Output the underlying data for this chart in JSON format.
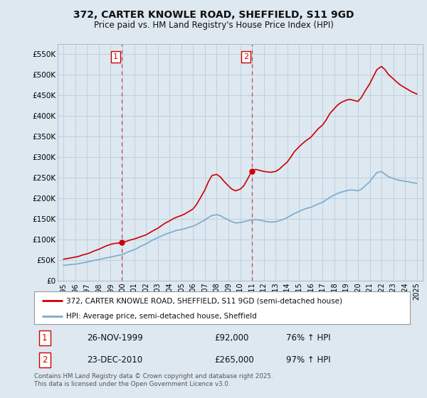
{
  "title_line1": "372, CARTER KNOWLE ROAD, SHEFFIELD, S11 9GD",
  "title_line2": "Price paid vs. HM Land Registry's House Price Index (HPI)",
  "sale1_label": "1",
  "sale1_date": "26-NOV-1999",
  "sale1_price": 92000,
  "sale1_hpi": "76% ↑ HPI",
  "sale1_year": 1999.92,
  "sale2_label": "2",
  "sale2_date": "23-DEC-2010",
  "sale2_price": 265000,
  "sale2_hpi": "97% ↑ HPI",
  "sale2_year": 2010.97,
  "legend_line1": "372, CARTER KNOWLE ROAD, SHEFFIELD, S11 9GD (semi-detached house)",
  "legend_line2": "HPI: Average price, semi-detached house, Sheffield",
  "footer": "Contains HM Land Registry data © Crown copyright and database right 2025.\nThis data is licensed under the Open Government Licence v3.0.",
  "line_color_red": "#cc0000",
  "line_color_blue": "#7aabcf",
  "vline_color": "#cc0000",
  "bg_color": "#dde8f0",
  "plot_bg": "#dde8f0",
  "grid_color": "#bbccdd",
  "ylim": [
    0,
    575000
  ],
  "xlim_start": 1994.5,
  "xlim_end": 2025.5,
  "yticks": [
    0,
    50000,
    100000,
    150000,
    200000,
    250000,
    300000,
    350000,
    400000,
    450000,
    500000,
    550000
  ],
  "ytick_labels": [
    "£0",
    "£50K",
    "£100K",
    "£150K",
    "£200K",
    "£250K",
    "£300K",
    "£350K",
    "£400K",
    "£450K",
    "£500K",
    "£550K"
  ],
  "xticks": [
    1995,
    1996,
    1997,
    1998,
    1999,
    2000,
    2001,
    2002,
    2003,
    2004,
    2005,
    2006,
    2007,
    2008,
    2009,
    2010,
    2011,
    2012,
    2013,
    2014,
    2015,
    2016,
    2017,
    2018,
    2019,
    2020,
    2021,
    2022,
    2023,
    2024,
    2025
  ],
  "red_x": [
    1995.0,
    1995.3,
    1995.6,
    1996.0,
    1996.3,
    1996.6,
    1997.0,
    1997.3,
    1997.6,
    1998.0,
    1998.3,
    1998.6,
    1999.0,
    1999.3,
    1999.6,
    1999.92,
    2000.3,
    2000.6,
    2001.0,
    2001.3,
    2001.6,
    2002.0,
    2002.3,
    2002.6,
    2003.0,
    2003.3,
    2003.6,
    2004.0,
    2004.3,
    2004.6,
    2005.0,
    2005.3,
    2005.6,
    2006.0,
    2006.3,
    2006.6,
    2007.0,
    2007.3,
    2007.6,
    2008.0,
    2008.3,
    2008.6,
    2009.0,
    2009.3,
    2009.6,
    2010.0,
    2010.3,
    2010.6,
    2010.97,
    2011.3,
    2011.6,
    2012.0,
    2012.3,
    2012.6,
    2013.0,
    2013.3,
    2013.6,
    2014.0,
    2014.3,
    2014.6,
    2015.0,
    2015.3,
    2015.6,
    2016.0,
    2016.3,
    2016.6,
    2017.0,
    2017.3,
    2017.6,
    2018.0,
    2018.3,
    2018.6,
    2019.0,
    2019.3,
    2019.6,
    2020.0,
    2020.3,
    2020.6,
    2021.0,
    2021.3,
    2021.6,
    2022.0,
    2022.3,
    2022.6,
    2023.0,
    2023.3,
    2023.6,
    2024.0,
    2024.3,
    2024.6,
    2025.0
  ],
  "red_y": [
    52000,
    53500,
    55000,
    57000,
    59000,
    62000,
    65000,
    68000,
    72000,
    76000,
    80000,
    84000,
    88000,
    90000,
    91000,
    92000,
    95000,
    98000,
    101000,
    104000,
    107000,
    111000,
    116000,
    121000,
    127000,
    133000,
    139000,
    145000,
    150000,
    154000,
    158000,
    162000,
    167000,
    174000,
    185000,
    200000,
    220000,
    240000,
    255000,
    258000,
    252000,
    242000,
    230000,
    222000,
    218000,
    222000,
    230000,
    245000,
    265000,
    270000,
    268000,
    265000,
    264000,
    263000,
    265000,
    270000,
    278000,
    288000,
    300000,
    313000,
    325000,
    333000,
    340000,
    348000,
    358000,
    368000,
    378000,
    390000,
    405000,
    418000,
    427000,
    433000,
    438000,
    440000,
    438000,
    435000,
    445000,
    460000,
    478000,
    495000,
    512000,
    520000,
    512000,
    500000,
    490000,
    482000,
    475000,
    468000,
    463000,
    458000,
    453000
  ],
  "blue_x": [
    1995.0,
    1995.3,
    1995.6,
    1996.0,
    1996.3,
    1996.6,
    1997.0,
    1997.3,
    1997.6,
    1998.0,
    1998.3,
    1998.6,
    1999.0,
    1999.3,
    1999.6,
    2000.0,
    2000.3,
    2000.6,
    2001.0,
    2001.3,
    2001.6,
    2002.0,
    2002.3,
    2002.6,
    2003.0,
    2003.3,
    2003.6,
    2004.0,
    2004.3,
    2004.6,
    2005.0,
    2005.3,
    2005.6,
    2006.0,
    2006.3,
    2006.6,
    2007.0,
    2007.3,
    2007.6,
    2008.0,
    2008.3,
    2008.6,
    2009.0,
    2009.3,
    2009.6,
    2010.0,
    2010.3,
    2010.6,
    2011.0,
    2011.3,
    2011.6,
    2012.0,
    2012.3,
    2012.6,
    2013.0,
    2013.3,
    2013.6,
    2014.0,
    2014.3,
    2014.6,
    2015.0,
    2015.3,
    2015.6,
    2016.0,
    2016.3,
    2016.6,
    2017.0,
    2017.3,
    2017.6,
    2018.0,
    2018.3,
    2018.6,
    2019.0,
    2019.3,
    2019.6,
    2020.0,
    2020.3,
    2020.6,
    2021.0,
    2021.3,
    2021.6,
    2022.0,
    2022.3,
    2022.6,
    2023.0,
    2023.3,
    2023.6,
    2024.0,
    2024.3,
    2024.6,
    2025.0
  ],
  "blue_y": [
    37000,
    38000,
    39000,
    40000,
    41000,
    43000,
    45000,
    47000,
    49000,
    51000,
    53000,
    55000,
    57000,
    59000,
    61000,
    63000,
    67000,
    71000,
    75000,
    79000,
    84000,
    89000,
    94000,
    99000,
    104000,
    108000,
    112000,
    116000,
    119000,
    122000,
    124000,
    126000,
    129000,
    132000,
    136000,
    141000,
    147000,
    153000,
    158000,
    160000,
    158000,
    153000,
    147000,
    143000,
    140000,
    141000,
    143000,
    145000,
    147000,
    148000,
    147000,
    145000,
    143000,
    142000,
    143000,
    145000,
    148000,
    153000,
    158000,
    163000,
    168000,
    172000,
    175000,
    178000,
    182000,
    186000,
    190000,
    196000,
    202000,
    208000,
    212000,
    215000,
    218000,
    220000,
    220000,
    218000,
    222000,
    230000,
    240000,
    252000,
    262000,
    265000,
    258000,
    252000,
    248000,
    245000,
    243000,
    241000,
    240000,
    238000,
    236000
  ]
}
